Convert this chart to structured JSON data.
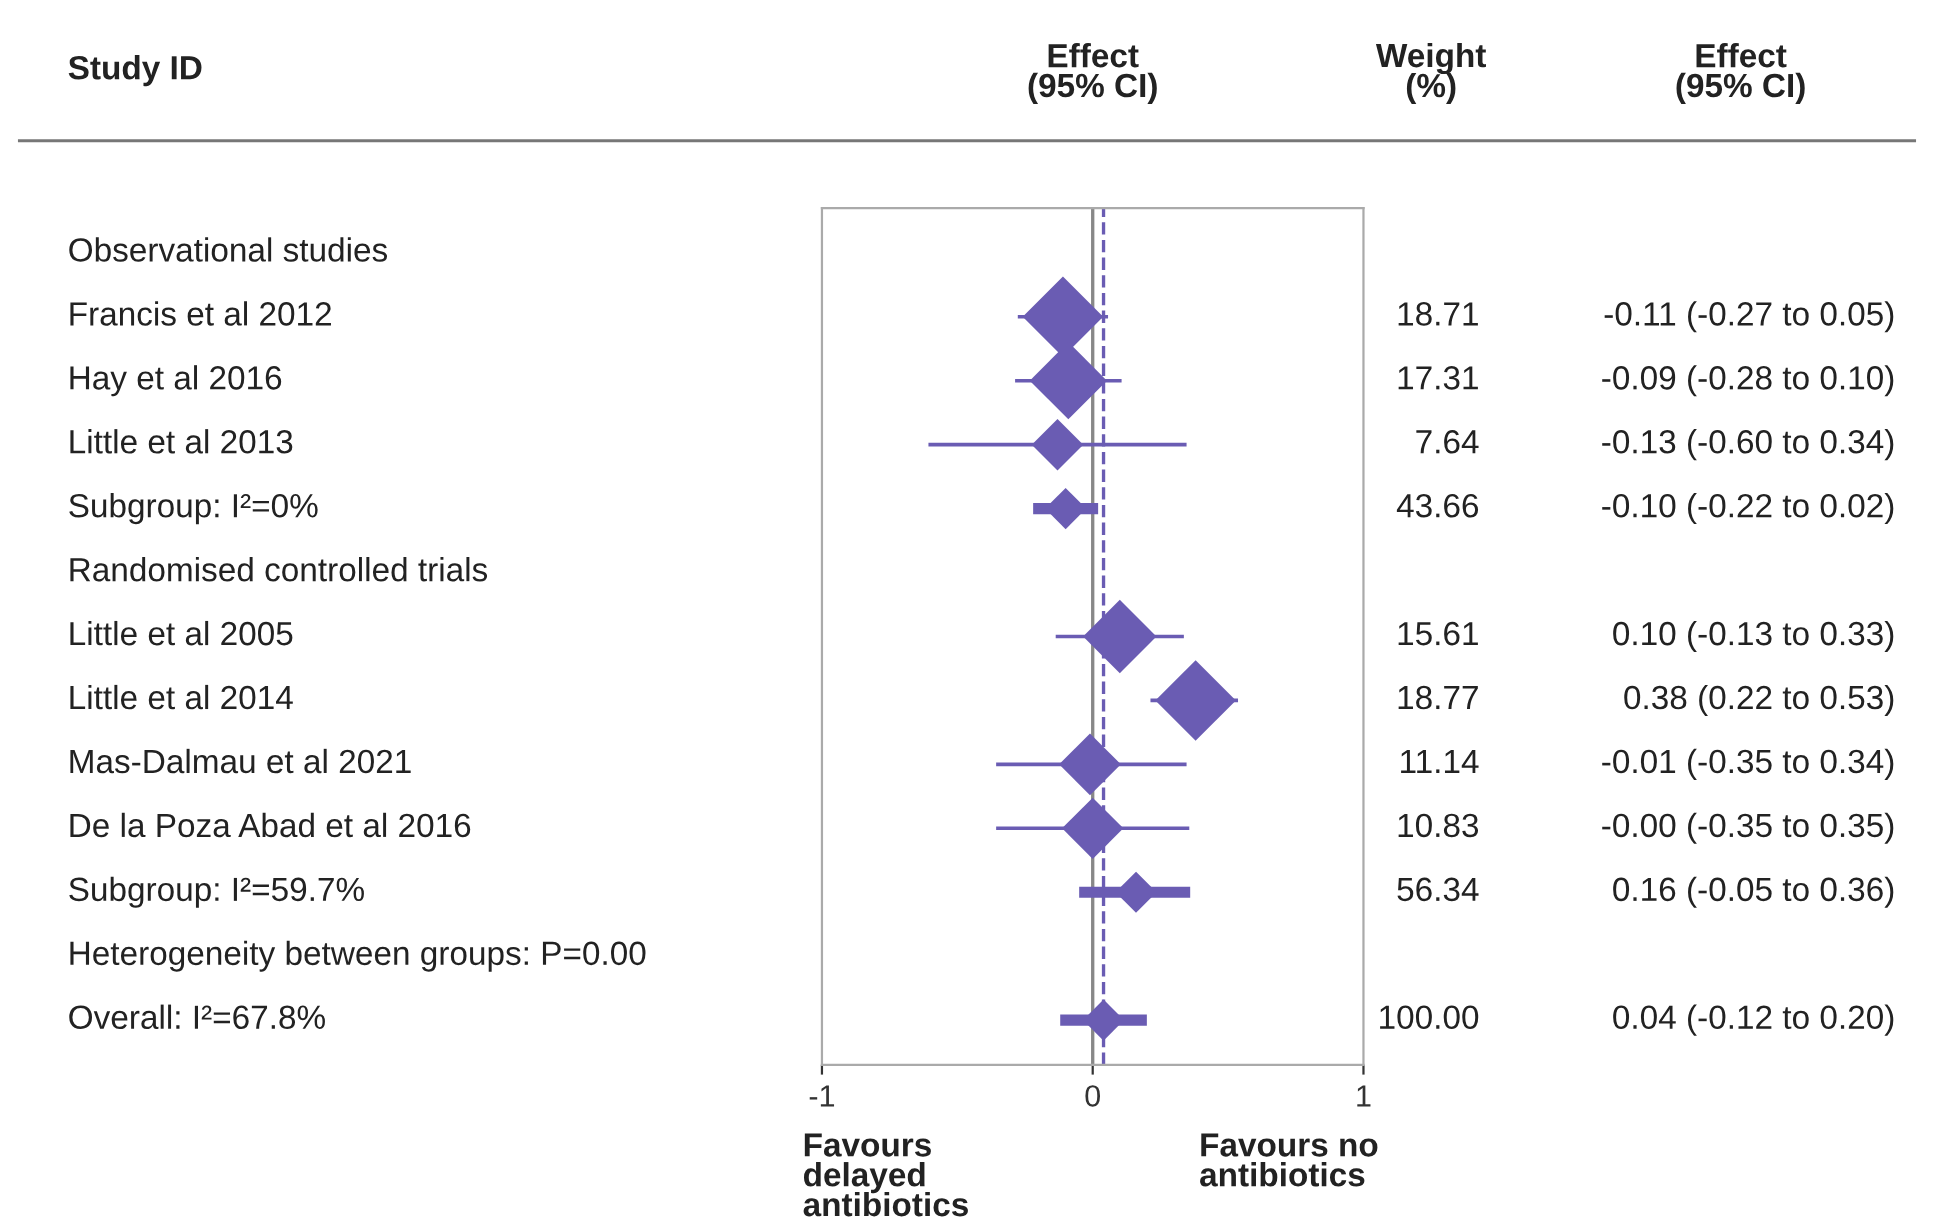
{
  "chart_data": {
    "type": "scatter",
    "orientation": "horizontal",
    "categories": [
      "Observational studies",
      "Francis et al 2012",
      "Hay et al 2016",
      "Little et al 2013",
      "Subgroup: I²=0%",
      "Randomised controlled trials",
      "Little et al 2005",
      "Little et al 2014",
      "Mas-Dalmau et al 2021",
      "De la Poza Abad et al 2016",
      "Subgroup: I²=59.7%",
      "Heterogeneity between groups: P=0.00",
      "Overall: I²=67.8%"
    ],
    "series": [
      {
        "marker": "diamond",
        "color": "#6a5cb3",
        "values": [
          null,
          -0.11,
          -0.09,
          -0.13,
          null,
          null,
          0.1,
          0.38,
          -0.01,
          -0.0,
          null,
          null,
          null
        ],
        "errors": [
          null,
          [
            -0.27,
            0.05
          ],
          [
            -0.28,
            0.1
          ],
          [
            -0.6,
            0.34
          ],
          null,
          null,
          [
            -0.13,
            0.33
          ],
          [
            0.22,
            0.53
          ],
          [
            -0.35,
            0.34
          ],
          [
            -0.35,
            0.35
          ],
          null,
          null,
          null
        ],
        "sizes": [
          null,
          1.0,
          0.92,
          0.41,
          null,
          null,
          0.83,
          1.0,
          0.59,
          0.58,
          null,
          null,
          null
        ],
        "value_labels": [
          null,
          "-0.11 (-0.27 to 0.05)",
          "-0.09 (-0.28 to 0.10)",
          "-0.13 (-0.60 to 0.34)",
          null,
          null,
          "0.10 (-0.13 to 0.33)",
          "0.38 (0.22 to 0.53)",
          "-0.01 (-0.35 to 0.34)",
          "-0.00 (-0.35 to 0.35)",
          null,
          null,
          null
        ]
      },
      {
        "marker": "diamond",
        "color": "#6a5cb3",
        "values": [
          null,
          null,
          null,
          null,
          -0.1,
          null,
          null,
          null,
          null,
          null,
          0.16,
          null,
          0.04
        ],
        "errors": [
          null,
          null,
          null,
          null,
          [
            -0.22,
            0.02
          ],
          null,
          null,
          null,
          null,
          null,
          [
            -0.05,
            0.36
          ],
          null,
          [
            -0.12,
            0.2
          ]
        ]
      }
    ],
    "xlim": [
      -1,
      1
    ],
    "xticks": [
      -1,
      0,
      1
    ],
    "grid": false,
    "ref_lines": [
      {
        "axis": "x",
        "value": 0,
        "color": "#888888",
        "line_style": "solid"
      },
      {
        "axis": "x",
        "value": 0.04,
        "color": "#6a5cb3",
        "line_style": "dashed"
      }
    ],
    "annotations": [
      "Study ID",
      "Effect\n(95% CI)",
      "Weight\n(%)",
      "Effect\n(95% CI)",
      "Favours\ndelayed\nantibiotics",
      "Favours no\nantibiotics",
      "18.71",
      "17.31",
      "7.64",
      "43.66",
      "15.61",
      "18.77",
      "11.14",
      "10.83",
      "56.34",
      "100.00",
      "-0.10 (-0.22 to 0.02)",
      "0.16 (-0.05 to 0.36)",
      "0.04 (-0.12 to 0.20)"
    ]
  }
}
